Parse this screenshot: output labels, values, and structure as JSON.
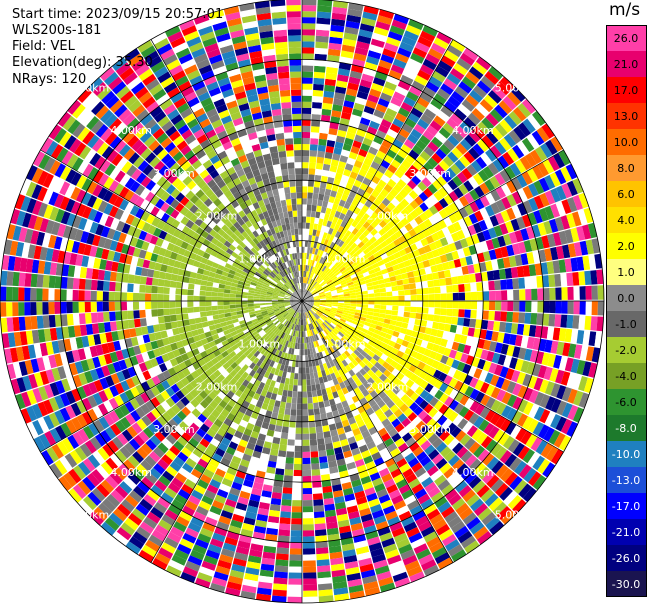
{
  "header": {
    "start_time": "Start time: 2023/09/15 20:57:01",
    "instrument": "WLS200s-181",
    "field": "Field: VEL",
    "elevation": "Elevation(deg): 35.30",
    "nrays": "NRays: 120"
  },
  "chart_data": {
    "type": "heatmap",
    "projection": "polar-ppi",
    "field": "VEL",
    "units": "m/s",
    "nrays": 120,
    "range_rings_km": [
      1.0,
      2.0,
      3.0,
      4.0,
      5.0
    ],
    "range_ring_labels": [
      "1.00km",
      "2.00km",
      "3.00km",
      "4.00km",
      "5.00km"
    ],
    "max_range_km": 5.0,
    "colorbar": {
      "title": "m/s",
      "ticks": [
        "26.0",
        "21.0",
        "17.0",
        "13.0",
        "10.0",
        "8.0",
        "6.0",
        "4.0",
        "2.0",
        "1.0",
        "0.0",
        "-1.0",
        "-2.0",
        "-4.0",
        "-6.0",
        "-8.0",
        "-10.0",
        "-13.0",
        "-17.0",
        "-21.0",
        "-26.0",
        "-30.0"
      ],
      "colors": [
        "#ff3fa8",
        "#e8006e",
        "#ff0000",
        "#ff3300",
        "#ff6c00",
        "#ff9a30",
        "#ffc300",
        "#ffe000",
        "#ffff00",
        "#ffff80",
        "#8c8c8c",
        "#686868",
        "#a6cc32",
        "#77a025",
        "#2e9430",
        "#1d7a2c",
        "#1f80c0",
        "#1c4fd8",
        "#0000ff",
        "#0000b0",
        "#000080",
        "#1a1450"
      ]
    },
    "noise_colors": [
      "#ff3fa8",
      "#e8006e",
      "#ff0000",
      "#ff6c00",
      "#ffff00",
      "#a6cc32",
      "#2e9430",
      "#1f80c0",
      "#0000ff",
      "#000080",
      "#7a7a7a",
      "#ffffff"
    ]
  }
}
